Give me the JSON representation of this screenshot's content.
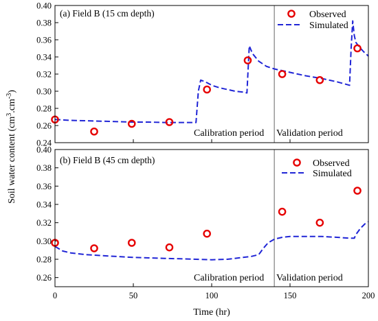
{
  "chart_data": [
    {
      "type": "line",
      "panel_label": "(a) Field B (15 cm depth)",
      "xlim": [
        0,
        200
      ],
      "ylim": [
        0.24,
        0.4
      ],
      "x_ticks": [],
      "y_ticks": [
        "0.24",
        "0.26",
        "0.28",
        "0.30",
        "0.32",
        "0.34",
        "0.36",
        "0.38",
        "0.40"
      ],
      "divider_x": 140,
      "period_labels": [
        "Calibration period",
        "Validation period"
      ],
      "legend": {
        "position": "top-right",
        "entries": [
          "Observed",
          "Simulated"
        ]
      },
      "series": [
        {
          "name": "Observed",
          "style": "markers",
          "color": "#e60000",
          "x": [
            0,
            25,
            49,
            73,
            97,
            123,
            145,
            169,
            193
          ],
          "y": [
            0.267,
            0.253,
            0.262,
            0.264,
            0.302,
            0.336,
            0.32,
            0.313,
            0.35
          ]
        },
        {
          "name": "Simulated",
          "style": "dashed",
          "color": "#1f24d6",
          "x": [
            0,
            10,
            20,
            30,
            40,
            50,
            60,
            70,
            80,
            90,
            91.5,
            93,
            96,
            100,
            105,
            110,
            115,
            120,
            122.5,
            123.5,
            124,
            126,
            130,
            135,
            140,
            145,
            150,
            160,
            170,
            180,
            188,
            189,
            190,
            191,
            192,
            194,
            197,
            200
          ],
          "y": [
            0.267,
            0.266,
            0.2655,
            0.265,
            0.2645,
            0.264,
            0.264,
            0.2635,
            0.2635,
            0.2635,
            0.3,
            0.313,
            0.311,
            0.307,
            0.304,
            0.302,
            0.3,
            0.299,
            0.298,
            0.335,
            0.353,
            0.344,
            0.335,
            0.329,
            0.326,
            0.324,
            0.322,
            0.318,
            0.315,
            0.311,
            0.307,
            0.35,
            0.382,
            0.365,
            0.357,
            0.352,
            0.346,
            0.341
          ]
        }
      ]
    },
    {
      "type": "line",
      "panel_label": "(b) Field B (45 cm depth)",
      "xlim": [
        0,
        200
      ],
      "ylim": [
        0.25,
        0.4
      ],
      "x_ticks": [
        "0",
        "50",
        "100",
        "150",
        "200"
      ],
      "y_ticks": [
        "0.26",
        "0.28",
        "0.30",
        "0.32",
        "0.34",
        "0.36",
        "0.38",
        "0.40"
      ],
      "divider_x": 140,
      "period_labels": [
        "Calibration period",
        "Validation period"
      ],
      "legend": {
        "position": "top-right",
        "entries": [
          "Observed",
          "Simulated"
        ]
      },
      "series": [
        {
          "name": "Observed",
          "style": "markers",
          "color": "#e60000",
          "x": [
            0,
            25,
            49,
            73,
            97,
            145,
            169,
            193
          ],
          "y": [
            0.298,
            0.292,
            0.298,
            0.293,
            0.308,
            0.332,
            0.32,
            0.355
          ]
        },
        {
          "name": "Simulated",
          "style": "dashed",
          "color": "#1f24d6",
          "x": [
            0,
            5,
            10,
            20,
            30,
            40,
            50,
            60,
            70,
            80,
            90,
            100,
            110,
            120,
            125,
            130,
            133,
            136,
            140,
            145,
            150,
            160,
            170,
            180,
            188,
            191,
            192,
            195,
            198,
            200
          ],
          "y": [
            0.294,
            0.289,
            0.287,
            0.285,
            0.284,
            0.283,
            0.282,
            0.2815,
            0.281,
            0.2805,
            0.28,
            0.2795,
            0.28,
            0.282,
            0.283,
            0.285,
            0.292,
            0.298,
            0.302,
            0.304,
            0.305,
            0.305,
            0.305,
            0.304,
            0.303,
            0.303,
            0.307,
            0.314,
            0.319,
            0.321
          ]
        }
      ]
    }
  ],
  "shared": {
    "ylabel_main": "Soil water content (cm",
    "ylabel_sup1": "3",
    "ylabel_mid": ".cm",
    "ylabel_sup2": "-3",
    "ylabel_end": ")",
    "xlabel": "Time (hr)"
  }
}
